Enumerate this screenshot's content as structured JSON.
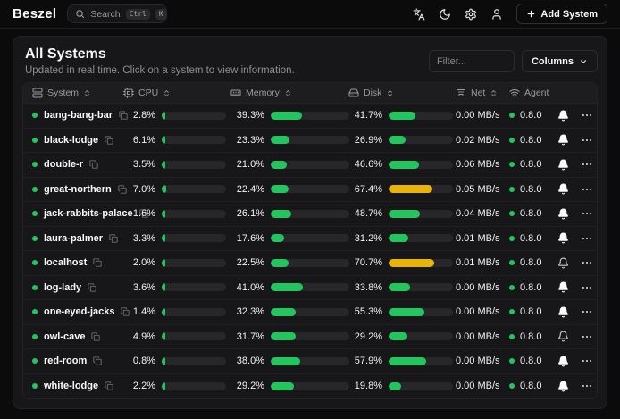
{
  "navbar": {
    "logo": "Beszel",
    "search": {
      "placeholder": "Search",
      "kbd": [
        "Ctrl",
        "K"
      ]
    },
    "add_system_label": "Add System"
  },
  "panel": {
    "title": "All Systems",
    "subtitle": "Updated in real time. Click on a system to view information.",
    "filter_placeholder": "Filter...",
    "columns_label": "Columns"
  },
  "table": {
    "warn_threshold_pct": 65,
    "headers": [
      {
        "label": "System",
        "icon": "server-icon",
        "sortable": true
      },
      {
        "label": "CPU",
        "icon": "cpu-icon",
        "sortable": true
      },
      {
        "label": "Memory",
        "icon": "memory-stick-icon",
        "sortable": true
      },
      {
        "label": "Disk",
        "icon": "hard-drive-icon",
        "sortable": true
      },
      {
        "label": "Net",
        "icon": "ethernet-icon",
        "sortable": true
      },
      {
        "label": "Agent",
        "icon": "wifi-icon",
        "sortable": false
      }
    ],
    "rows": [
      {
        "name": "bang-bang-bar",
        "cpu": {
          "label": "2.8%",
          "pct": 2.8
        },
        "memory": {
          "label": "39.3%",
          "pct": 39.3
        },
        "disk": {
          "label": "41.7%",
          "pct": 41.7
        },
        "net": "0.00 MB/s",
        "agent": "0.8.0",
        "bell": "filled"
      },
      {
        "name": "black-lodge",
        "cpu": {
          "label": "6.1%",
          "pct": 6.1
        },
        "memory": {
          "label": "23.3%",
          "pct": 23.3
        },
        "disk": {
          "label": "26.9%",
          "pct": 26.9
        },
        "net": "0.02 MB/s",
        "agent": "0.8.0",
        "bell": "filled"
      },
      {
        "name": "double-r",
        "cpu": {
          "label": "3.5%",
          "pct": 3.5
        },
        "memory": {
          "label": "21.0%",
          "pct": 21.0
        },
        "disk": {
          "label": "46.6%",
          "pct": 46.6
        },
        "net": "0.06 MB/s",
        "agent": "0.8.0",
        "bell": "filled"
      },
      {
        "name": "great-northern",
        "cpu": {
          "label": "7.0%",
          "pct": 7.0
        },
        "memory": {
          "label": "22.4%",
          "pct": 22.4
        },
        "disk": {
          "label": "67.4%",
          "pct": 67.4
        },
        "net": "0.05 MB/s",
        "agent": "0.8.0",
        "bell": "filled"
      },
      {
        "name": "jack-rabbits-palace",
        "cpu": {
          "label": "1.6%",
          "pct": 1.6
        },
        "memory": {
          "label": "26.1%",
          "pct": 26.1
        },
        "disk": {
          "label": "48.7%",
          "pct": 48.7
        },
        "net": "0.04 MB/s",
        "agent": "0.8.0",
        "bell": "filled"
      },
      {
        "name": "laura-palmer",
        "cpu": {
          "label": "3.3%",
          "pct": 3.3
        },
        "memory": {
          "label": "17.6%",
          "pct": 17.6
        },
        "disk": {
          "label": "31.2%",
          "pct": 31.2
        },
        "net": "0.01 MB/s",
        "agent": "0.8.0",
        "bell": "filled"
      },
      {
        "name": "localhost",
        "cpu": {
          "label": "2.0%",
          "pct": 2.0
        },
        "memory": {
          "label": "22.5%",
          "pct": 22.5
        },
        "disk": {
          "label": "70.7%",
          "pct": 70.7
        },
        "net": "0.01 MB/s",
        "agent": "0.8.0",
        "bell": "outline"
      },
      {
        "name": "log-lady",
        "cpu": {
          "label": "3.6%",
          "pct": 3.6
        },
        "memory": {
          "label": "41.0%",
          "pct": 41.0
        },
        "disk": {
          "label": "33.8%",
          "pct": 33.8
        },
        "net": "0.00 MB/s",
        "agent": "0.8.0",
        "bell": "filled"
      },
      {
        "name": "one-eyed-jacks",
        "cpu": {
          "label": "1.4%",
          "pct": 1.4
        },
        "memory": {
          "label": "32.3%",
          "pct": 32.3
        },
        "disk": {
          "label": "55.3%",
          "pct": 55.3
        },
        "net": "0.00 MB/s",
        "agent": "0.8.0",
        "bell": "filled"
      },
      {
        "name": "owl-cave",
        "cpu": {
          "label": "4.9%",
          "pct": 4.9
        },
        "memory": {
          "label": "31.7%",
          "pct": 31.7
        },
        "disk": {
          "label": "29.2%",
          "pct": 29.2
        },
        "net": "0.00 MB/s",
        "agent": "0.8.0",
        "bell": "outline"
      },
      {
        "name": "red-room",
        "cpu": {
          "label": "0.8%",
          "pct": 0.8
        },
        "memory": {
          "label": "38.0%",
          "pct": 38.0
        },
        "disk": {
          "label": "57.9%",
          "pct": 57.9
        },
        "net": "0.00 MB/s",
        "agent": "0.8.0",
        "bell": "filled"
      },
      {
        "name": "white-lodge",
        "cpu": {
          "label": "2.2%",
          "pct": 2.2
        },
        "memory": {
          "label": "29.2%",
          "pct": 29.2
        },
        "disk": {
          "label": "19.8%",
          "pct": 19.8
        },
        "net": "0.00 MB/s",
        "agent": "0.8.0",
        "bell": "filled"
      }
    ]
  },
  "colors": {
    "green": "#22c55e",
    "warning": "#eab308",
    "bar_track": "#27272a",
    "card_bg": "#171719",
    "page_bg": "#0b0b0c"
  }
}
